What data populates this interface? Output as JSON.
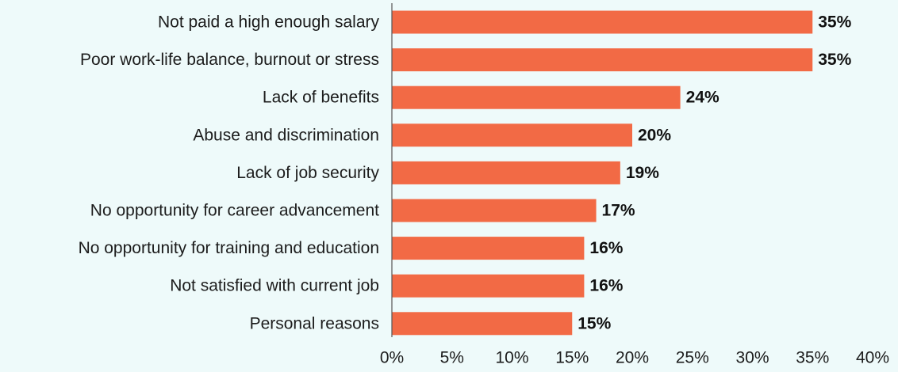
{
  "colors": {
    "background": "#eefafa",
    "bar": "#f26a45",
    "axis": "#555555"
  },
  "chart_data": {
    "type": "bar",
    "orientation": "horizontal",
    "title": "",
    "xlabel": "",
    "ylabel": "",
    "categories": [
      "Not paid a high enough salary",
      "Poor work-life balance, burnout or stress",
      "Lack of benefits",
      "Abuse and discrimination",
      "Lack of job security",
      "No opportunity for career advancement",
      "No opportunity for training and education",
      "Not satisfied with current job",
      "Personal reasons"
    ],
    "values": [
      35,
      35,
      24,
      20,
      19,
      17,
      16,
      16,
      15
    ],
    "value_labels": [
      "35%",
      "35%",
      "24%",
      "20%",
      "19%",
      "17%",
      "16%",
      "16%",
      "15%"
    ],
    "xlim": [
      0,
      40
    ],
    "x_ticks": [
      0,
      5,
      10,
      15,
      20,
      25,
      30,
      35,
      40
    ],
    "x_tick_labels": [
      "0%",
      "5%",
      "10%",
      "15%",
      "20%",
      "25%",
      "30%",
      "35%",
      "40%"
    ],
    "grid": false,
    "legend": "none"
  }
}
